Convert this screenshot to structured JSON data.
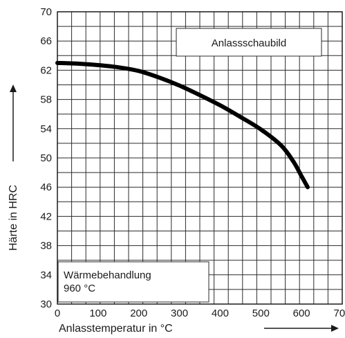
{
  "chart_data": {
    "type": "line",
    "title": "Anlassschaubild",
    "annotation": {
      "line1": "Wärmebehandlung",
      "line2": "960 °C"
    },
    "xlabel": "Anlasstemperatur in °C",
    "ylabel": "Härte in HRC",
    "xlim": [
      0,
      700
    ],
    "ylim": [
      30,
      70
    ],
    "x_ticks": [
      0,
      100,
      200,
      300,
      400,
      500,
      600,
      700
    ],
    "y_ticks": [
      30,
      34,
      38,
      42,
      46,
      50,
      54,
      58,
      62,
      66,
      70
    ],
    "grid": true,
    "series": [
      {
        "x": [
          0,
          50,
          100,
          150,
          200,
          250,
          300,
          350,
          400,
          450,
          500,
          550,
          580,
          600,
          615
        ],
        "y": [
          63.0,
          62.9,
          62.7,
          62.4,
          61.9,
          61.0,
          59.9,
          58.6,
          57.2,
          55.6,
          53.9,
          51.7,
          49.5,
          47.5,
          46.0
        ]
      }
    ],
    "line_color": "#000000"
  }
}
